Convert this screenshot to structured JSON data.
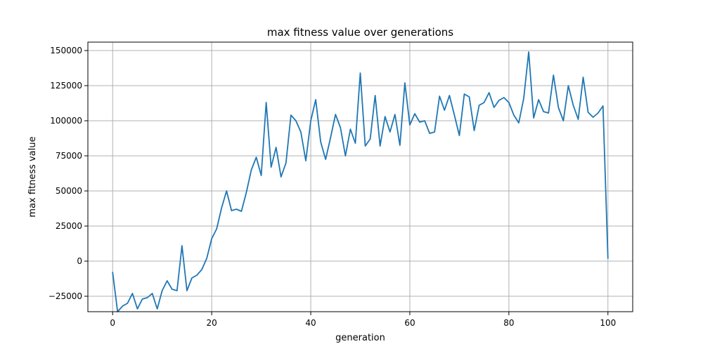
{
  "chart_data": {
    "type": "line",
    "title": "max fitness value over generations",
    "xlabel": "generation",
    "ylabel": "max fitness value",
    "xlim": [
      -5,
      105
    ],
    "ylim": [
      -36000,
      156000
    ],
    "xticks": [
      0,
      20,
      40,
      60,
      80,
      100
    ],
    "yticks": [
      -25000,
      0,
      25000,
      50000,
      75000,
      100000,
      125000,
      150000
    ],
    "grid": true,
    "color": "#1f77b4",
    "series": [
      {
        "x": [
          0,
          1,
          2,
          3,
          4,
          5,
          6,
          7,
          8,
          9,
          10,
          11,
          12,
          13,
          14,
          15,
          16,
          17,
          18,
          19,
          20,
          21,
          22,
          23,
          24,
          25,
          26,
          27,
          28,
          29,
          30,
          31,
          32,
          33,
          34,
          35,
          36,
          37,
          38,
          39,
          40,
          41,
          42,
          43,
          44,
          45,
          46,
          47,
          48,
          49,
          50,
          51,
          52,
          53,
          54,
          55,
          56,
          57,
          58,
          59,
          60,
          61,
          62,
          63,
          64,
          65,
          66,
          67,
          68,
          69,
          70,
          71,
          72,
          73,
          74,
          75,
          76,
          77,
          78,
          79,
          80,
          81,
          82,
          83,
          84,
          85,
          86,
          87,
          88,
          89,
          90,
          91,
          92,
          93,
          94,
          95,
          96,
          97,
          98,
          99,
          100
        ],
        "values": [
          -8000,
          -36000,
          -32000,
          -30000,
          -23000,
          -34000,
          -27000,
          -26000,
          -23000,
          -34000,
          -21000,
          -14000,
          -20000,
          -21000,
          11000,
          -21000,
          -12000,
          -10000,
          -6000,
          2000,
          16000,
          23000,
          38000,
          50000,
          36000,
          37000,
          35500,
          49000,
          65000,
          74000,
          61000,
          113000,
          67000,
          81000,
          60000,
          70000,
          104000,
          100000,
          92000,
          71500,
          100000,
          115000,
          85000,
          72500,
          88000,
          104500,
          95000,
          75000,
          94000,
          84000,
          134000,
          82000,
          87000,
          118000,
          82000,
          103000,
          92000,
          104500,
          82500,
          127000,
          97000,
          105000,
          99000,
          100000,
          91000,
          92000,
          117500,
          107500,
          118000,
          104000,
          89500,
          119000,
          117000,
          93000,
          111000,
          113000,
          120000,
          109500,
          114500,
          116500,
          113000,
          104000,
          98500,
          116000,
          149000,
          102000,
          115000,
          106500,
          105500,
          132500,
          109500,
          100000,
          125000,
          111000,
          101000,
          131000,
          106000,
          102500,
          105500,
          110500,
          2000
        ]
      }
    ]
  }
}
